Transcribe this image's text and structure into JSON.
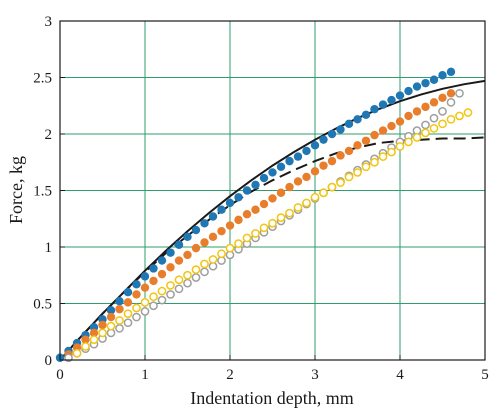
{
  "chart_data": {
    "type": "scatter",
    "title": "",
    "xlabel": "Indentation depth, mm",
    "ylabel": "Force, kg",
    "xlim": [
      0,
      5
    ],
    "ylim": [
      0,
      3
    ],
    "xticks": [
      "0",
      "1",
      "2",
      "3",
      "4",
      "5"
    ],
    "yticks": [
      "0",
      "0.5",
      "1",
      "1.5",
      "2",
      "2.5",
      "3"
    ],
    "grid": true,
    "grid_color": "#2e9e6e",
    "series": [
      {
        "style": "filled-circle",
        "color": "#1f77b4",
        "x": [
          0.0,
          0.1,
          0.2,
          0.3,
          0.4,
          0.5,
          0.6,
          0.7,
          0.8,
          0.9,
          1.0,
          1.1,
          1.2,
          1.3,
          1.4,
          1.5,
          1.6,
          1.7,
          1.8,
          1.9,
          2.0,
          2.1,
          2.2,
          2.3,
          2.4,
          2.5,
          2.6,
          2.7,
          2.8,
          2.9,
          3.0,
          3.1,
          3.2,
          3.3,
          3.4,
          3.5,
          3.6,
          3.7,
          3.8,
          3.9,
          4.0,
          4.1,
          4.2,
          4.3,
          4.4,
          4.5,
          4.6
        ],
        "y": [
          0.02,
          0.08,
          0.15,
          0.22,
          0.29,
          0.36,
          0.44,
          0.52,
          0.6,
          0.67,
          0.74,
          0.81,
          0.88,
          0.95,
          1.02,
          1.09,
          1.15,
          1.21,
          1.27,
          1.33,
          1.39,
          1.44,
          1.5,
          1.55,
          1.61,
          1.66,
          1.71,
          1.76,
          1.8,
          1.85,
          1.9,
          1.95,
          2.0,
          2.04,
          2.09,
          2.13,
          2.17,
          2.22,
          2.26,
          2.3,
          2.34,
          2.38,
          2.42,
          2.45,
          2.48,
          2.52,
          2.55
        ]
      },
      {
        "style": "filled-circle",
        "color": "#e87d2c",
        "x": [
          0.1,
          0.2,
          0.3,
          0.4,
          0.5,
          0.6,
          0.7,
          0.8,
          0.9,
          1.0,
          1.1,
          1.2,
          1.3,
          1.4,
          1.5,
          1.6,
          1.7,
          1.8,
          1.9,
          2.0,
          2.1,
          2.2,
          2.3,
          2.4,
          2.5,
          2.6,
          2.7,
          2.8,
          2.9,
          3.0,
          3.1,
          3.2,
          3.3,
          3.4,
          3.5,
          3.6,
          3.7,
          3.8,
          3.9,
          4.0,
          4.1,
          4.2,
          4.3,
          4.4,
          4.5,
          4.6
        ],
        "y": [
          0.05,
          0.11,
          0.18,
          0.24,
          0.31,
          0.38,
          0.45,
          0.51,
          0.58,
          0.64,
          0.7,
          0.76,
          0.82,
          0.88,
          0.93,
          0.99,
          1.04,
          1.09,
          1.14,
          1.19,
          1.24,
          1.29,
          1.33,
          1.38,
          1.43,
          1.48,
          1.53,
          1.58,
          1.62,
          1.67,
          1.72,
          1.76,
          1.81,
          1.85,
          1.9,
          1.94,
          1.99,
          2.03,
          2.07,
          2.11,
          2.16,
          2.2,
          2.24,
          2.28,
          2.32,
          2.36
        ]
      },
      {
        "style": "hollow-circle",
        "color": "#9e9e9e",
        "x": [
          0.1,
          0.2,
          0.3,
          0.4,
          0.5,
          0.6,
          0.7,
          0.8,
          0.9,
          1.0,
          1.1,
          1.2,
          1.3,
          1.4,
          1.5,
          1.6,
          1.7,
          1.8,
          1.9,
          2.0,
          2.1,
          2.2,
          2.3,
          2.4,
          2.5,
          2.6,
          2.7,
          2.8,
          2.9,
          3.0,
          3.1,
          3.2,
          3.3,
          3.4,
          3.5,
          3.6,
          3.7,
          3.8,
          3.9,
          4.0,
          4.1,
          4.2,
          4.3,
          4.4,
          4.5,
          4.6,
          4.7
        ],
        "y": [
          0.02,
          0.06,
          0.1,
          0.14,
          0.19,
          0.24,
          0.28,
          0.33,
          0.38,
          0.43,
          0.48,
          0.53,
          0.58,
          0.63,
          0.68,
          0.73,
          0.78,
          0.83,
          0.88,
          0.93,
          0.98,
          1.03,
          1.08,
          1.13,
          1.18,
          1.23,
          1.28,
          1.33,
          1.38,
          1.43,
          1.48,
          1.53,
          1.58,
          1.63,
          1.68,
          1.73,
          1.78,
          1.83,
          1.88,
          1.93,
          1.98,
          2.03,
          2.08,
          2.14,
          2.2,
          2.28,
          2.36
        ]
      },
      {
        "style": "hollow-circle",
        "color": "#f2c511",
        "x": [
          0.2,
          0.3,
          0.4,
          0.5,
          0.6,
          0.7,
          0.8,
          0.9,
          1.0,
          1.1,
          1.2,
          1.3,
          1.4,
          1.5,
          1.6,
          1.7,
          1.8,
          1.9,
          2.0,
          2.1,
          2.2,
          2.3,
          2.4,
          2.5,
          2.6,
          2.7,
          2.8,
          2.9,
          3.0,
          3.1,
          3.2,
          3.3,
          3.4,
          3.5,
          3.6,
          3.7,
          3.8,
          3.9,
          4.0,
          4.1,
          4.2,
          4.3,
          4.4,
          4.5,
          4.6,
          4.7,
          4.8
        ],
        "y": [
          0.06,
          0.12,
          0.18,
          0.24,
          0.3,
          0.35,
          0.41,
          0.46,
          0.51,
          0.56,
          0.61,
          0.66,
          0.71,
          0.75,
          0.8,
          0.85,
          0.89,
          0.94,
          0.99,
          1.03,
          1.08,
          1.12,
          1.17,
          1.21,
          1.26,
          1.3,
          1.35,
          1.39,
          1.44,
          1.48,
          1.53,
          1.57,
          1.62,
          1.66,
          1.71,
          1.75,
          1.8,
          1.84,
          1.89,
          1.93,
          1.97,
          2.01,
          2.05,
          2.09,
          2.13,
          2.16,
          2.19
        ]
      },
      {
        "style": "solid-line",
        "color": "#1a1a1a",
        "x": [
          0.0,
          0.25,
          0.5,
          0.75,
          1.0,
          1.25,
          1.5,
          1.75,
          2.0,
          2.25,
          2.5,
          2.75,
          3.0,
          3.25,
          3.5,
          3.75,
          4.0,
          4.25,
          4.5,
          4.75,
          5.0
        ],
        "y": [
          0.0,
          0.21,
          0.41,
          0.6,
          0.79,
          0.97,
          1.14,
          1.3,
          1.45,
          1.59,
          1.72,
          1.84,
          1.95,
          2.05,
          2.14,
          2.22,
          2.29,
          2.35,
          2.4,
          2.44,
          2.47
        ]
      },
      {
        "style": "dashed-line",
        "color": "#1a1a1a",
        "x": [
          0.0,
          0.25,
          0.5,
          0.75,
          1.0,
          1.25,
          1.5,
          1.75,
          2.0,
          2.25,
          2.5,
          2.75,
          3.0,
          3.25,
          3.5,
          3.75,
          4.0,
          4.25,
          4.5,
          4.75,
          5.0
        ],
        "y": [
          0.0,
          0.21,
          0.41,
          0.6,
          0.78,
          0.95,
          1.1,
          1.24,
          1.37,
          1.49,
          1.59,
          1.68,
          1.76,
          1.83,
          1.88,
          1.92,
          1.94,
          1.95,
          1.96,
          1.96,
          1.97
        ]
      }
    ]
  }
}
